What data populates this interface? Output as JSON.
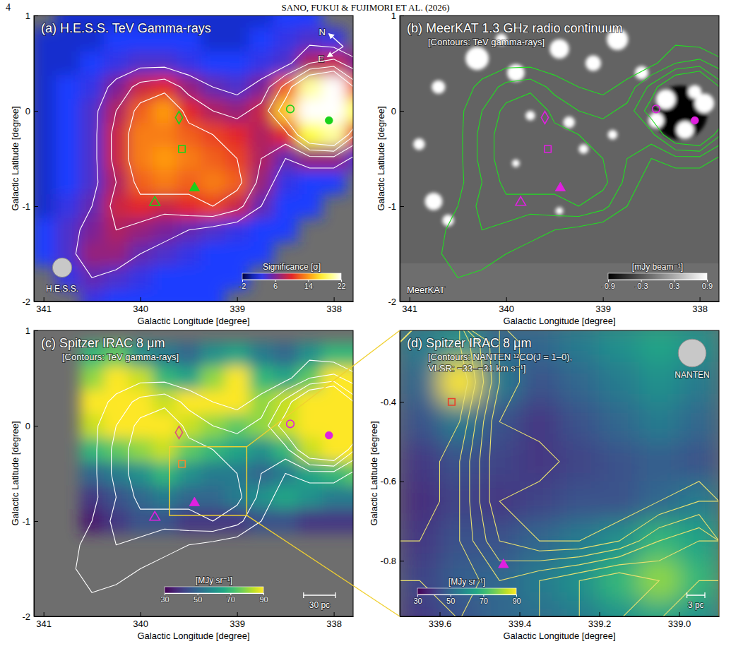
{
  "header": {
    "page": "4",
    "running_head": "SANO, FUKUI & FUJIMORI ET AL. (2026)"
  },
  "chart_data": [
    {
      "type": "heatmap",
      "title": "(a) H.E.S.S. TeV Gamma-rays",
      "xlabel": "Galactic Longitude [degree]",
      "ylabel": "Galactic Latitude [degree]",
      "xlim": [
        341.1,
        337.8
      ],
      "ylim": [
        -2,
        1
      ],
      "xticks": [
        341,
        340,
        339,
        338
      ],
      "yticks": [
        1,
        0,
        -1,
        -2
      ],
      "image": {
        "x": [
          341,
          340.75,
          340.5,
          340.25,
          340,
          339.75,
          339.5,
          339.25,
          339,
          338.75,
          338.5,
          338.25,
          338,
          337.75
        ],
        "y": [
          1,
          0.75,
          0.5,
          0.25,
          0,
          -0.25,
          -0.5,
          -0.75,
          -1,
          -1.25,
          -1.5,
          -1.75,
          -2
        ],
        "values": [
          [
            null,
            1,
            1,
            1,
            1,
            1,
            1,
            1,
            1,
            1,
            2,
            2,
            null,
            null
          ],
          [
            1,
            1,
            1,
            2,
            2,
            2,
            2,
            1,
            1,
            2,
            3,
            4,
            3,
            null
          ],
          [
            1,
            1,
            2,
            3,
            4,
            4,
            3,
            2,
            2,
            3,
            4,
            8,
            9,
            6
          ],
          [
            1,
            2,
            3,
            6,
            9,
            10,
            7,
            5,
            4,
            6,
            12,
            20,
            24,
            12
          ],
          [
            1,
            2,
            4,
            8,
            12,
            14,
            10,
            8,
            7,
            9,
            16,
            28,
            30,
            18
          ],
          [
            1,
            2,
            4,
            9,
            13,
            13,
            12,
            11,
            10,
            8,
            10,
            18,
            20,
            10
          ],
          [
            1,
            2,
            4,
            9,
            13,
            14,
            13,
            12,
            11,
            8,
            5,
            7,
            7,
            4
          ],
          [
            1,
            2,
            4,
            8,
            12,
            13,
            12,
            13,
            12,
            7,
            3,
            2,
            2,
            null
          ],
          [
            1,
            3,
            5,
            9,
            10,
            9,
            10,
            11,
            9,
            5,
            2,
            2,
            null,
            null
          ],
          [
            2,
            4,
            6,
            8,
            7,
            6,
            5,
            4,
            3,
            2,
            2,
            null,
            null,
            null
          ],
          [
            2,
            4,
            7,
            7,
            5,
            4,
            3,
            2,
            2,
            2,
            null,
            null,
            null,
            null
          ],
          [
            null,
            3,
            5,
            4,
            3,
            2,
            2,
            2,
            2,
            null,
            null,
            null,
            null,
            null
          ],
          [
            null,
            null,
            3,
            2,
            2,
            2,
            2,
            2,
            null,
            null,
            null,
            null,
            null,
            null
          ]
        ]
      },
      "contour_levels": [
        5,
        8,
        11,
        14
      ],
      "colorbar": {
        "label": "Significance [σ]",
        "range": [
          -2,
          22
        ],
        "ticks": [
          -2,
          6,
          14,
          22
        ]
      },
      "markers": [
        {
          "x": 338.45,
          "y": 0.02,
          "marker": "circle-open",
          "color": "#19d219"
        },
        {
          "x": 338.05,
          "y": -0.1,
          "marker": "circle",
          "color": "#19d219"
        },
        {
          "x": 339.6,
          "y": -0.07,
          "marker": "diamond-open",
          "color": "#19d219"
        },
        {
          "x": 339.57,
          "y": -0.4,
          "marker": "square-open",
          "color": "#19d219"
        },
        {
          "x": 339.44,
          "y": -0.81,
          "marker": "triangle",
          "color": "#19d219"
        },
        {
          "x": 339.85,
          "y": -0.96,
          "marker": "triangle-open",
          "color": "#19d219"
        }
      ],
      "beam": {
        "label": "H.E.S.S.",
        "radius_deg": 0.1
      },
      "compass": [
        "N",
        "E"
      ]
    },
    {
      "type": "heatmap",
      "title": "(b) MeerKAT 1.3 GHz radio continuum",
      "subtitle": "[Contours: TeV gamma-rays]",
      "xlabel": "Galactic Longitude [degree]",
      "ylabel": "Galactic Latitude [degree]",
      "xlim": [
        341.1,
        337.8
      ],
      "ylim": [
        -2,
        1
      ],
      "xticks": [
        341,
        340,
        339,
        338
      ],
      "yticks": [
        1,
        0,
        -1,
        -2
      ],
      "background": -0.2,
      "coverage_ylim": [
        -1.6,
        1
      ],
      "sources": [
        {
          "x": 338.2,
          "y": -0.02,
          "r": 0.28,
          "value": -0.9
        },
        {
          "x": 338.35,
          "y": 0.12,
          "r": 0.1,
          "value": 0.9
        },
        {
          "x": 338.45,
          "y": -0.1,
          "r": 0.08,
          "value": 0.9
        },
        {
          "x": 338.15,
          "y": -0.2,
          "r": 0.09,
          "value": 0.9
        },
        {
          "x": 337.95,
          "y": 0.08,
          "r": 0.1,
          "value": 0.9
        },
        {
          "x": 338.05,
          "y": 0.2,
          "r": 0.07,
          "value": 0.9
        },
        {
          "x": 340.3,
          "y": 0.55,
          "r": 0.12,
          "value": 0.9
        },
        {
          "x": 339.9,
          "y": 0.4,
          "r": 0.09,
          "value": 0.9
        },
        {
          "x": 339.45,
          "y": 0.65,
          "r": 0.1,
          "value": 0.9
        },
        {
          "x": 339.1,
          "y": 0.5,
          "r": 0.08,
          "value": 0.9
        },
        {
          "x": 338.85,
          "y": 0.75,
          "r": 0.11,
          "value": 0.9
        },
        {
          "x": 338.6,
          "y": 0.4,
          "r": 0.07,
          "value": 0.9
        },
        {
          "x": 340.7,
          "y": 0.25,
          "r": 0.07,
          "value": 0.9
        },
        {
          "x": 340.9,
          "y": -0.35,
          "r": 0.06,
          "value": 0.9
        },
        {
          "x": 340.75,
          "y": -0.95,
          "r": 0.09,
          "value": 0.9
        },
        {
          "x": 340.6,
          "y": -1.15,
          "r": 0.06,
          "value": 0.9
        },
        {
          "x": 339.75,
          "y": -0.05,
          "r": 0.05,
          "value": 0.9
        },
        {
          "x": 339.35,
          "y": -0.12,
          "r": 0.06,
          "value": 0.9
        },
        {
          "x": 339.2,
          "y": -0.4,
          "r": 0.05,
          "value": 0.9
        },
        {
          "x": 339.9,
          "y": -0.55,
          "r": 0.04,
          "value": 0.9
        },
        {
          "x": 338.9,
          "y": -0.25,
          "r": 0.05,
          "value": 0.9
        },
        {
          "x": 339.45,
          "y": -1.05,
          "r": 0.04,
          "value": 0.9
        },
        {
          "x": 340.05,
          "y": 0.75,
          "r": 0.06,
          "value": 0.9
        }
      ],
      "contour_levels": [
        5,
        8,
        11,
        14
      ],
      "colorbar": {
        "label": "[mJy beam⁻¹]",
        "range": [
          -0.9,
          0.9
        ],
        "ticks": [
          -0.9,
          -0.3,
          0.3,
          0.9
        ]
      },
      "markers": [
        {
          "x": 338.45,
          "y": 0.02,
          "marker": "circle-open",
          "color": "#e020e0"
        },
        {
          "x": 338.05,
          "y": -0.1,
          "marker": "circle",
          "color": "#e020e0"
        },
        {
          "x": 339.6,
          "y": -0.07,
          "marker": "diamond-open",
          "color": "#e020e0"
        },
        {
          "x": 339.57,
          "y": -0.4,
          "marker": "square-open",
          "color": "#e020e0"
        },
        {
          "x": 339.44,
          "y": -0.81,
          "marker": "triangle",
          "color": "#e020e0"
        },
        {
          "x": 339.85,
          "y": -0.96,
          "marker": "triangle-open",
          "color": "#e020e0"
        }
      ],
      "telescope": "MeerKAT"
    },
    {
      "type": "heatmap",
      "title": "(c) Spitzer IRAC 8 μm",
      "subtitle": "[Contours: TeV gamma-rays]",
      "xlabel": "Galactic Longitude [degree]",
      "ylabel": "Galactic Latitude [degree]",
      "xlim": [
        341.1,
        337.8
      ],
      "ylim": [
        -2,
        1
      ],
      "xticks": [
        341,
        340,
        339,
        338
      ],
      "yticks": [
        1,
        0,
        -1,
        -2
      ],
      "image": {
        "x": [
          340.5,
          340.25,
          340,
          339.75,
          339.5,
          339.25,
          339,
          338.75,
          338.5,
          338.25,
          338,
          337.75
        ],
        "y": [
          0.75,
          0.5,
          0.25,
          0,
          -0.25,
          -0.5,
          -0.75,
          -1
        ],
        "values": [
          [
            70,
            75,
            60,
            55,
            50,
            60,
            65,
            55,
            50,
            60,
            70,
            70
          ],
          [
            80,
            90,
            85,
            70,
            65,
            80,
            90,
            70,
            65,
            75,
            90,
            90
          ],
          [
            90,
            95,
            90,
            85,
            90,
            95,
            90,
            80,
            85,
            90,
            95,
            95
          ],
          [
            85,
            90,
            95,
            90,
            85,
            80,
            75,
            80,
            85,
            95,
            100,
            100
          ],
          [
            70,
            75,
            80,
            85,
            75,
            70,
            65,
            60,
            70,
            85,
            95,
            95
          ],
          [
            50,
            55,
            60,
            70,
            60,
            55,
            55,
            50,
            55,
            65,
            70,
            75
          ],
          [
            40,
            45,
            50,
            55,
            50,
            50,
            55,
            60,
            65,
            60,
            55,
            55
          ],
          [
            35,
            40,
            45,
            45,
            40,
            40,
            40,
            45,
            45,
            40,
            40,
            40
          ]
        ]
      },
      "contour_levels": [
        5,
        8,
        11,
        14
      ],
      "colorbar": {
        "label": "[MJy sr⁻¹]",
        "range": [
          30,
          90
        ],
        "ticks": [
          30,
          50,
          70,
          90
        ]
      },
      "markers": [
        {
          "x": 338.45,
          "y": 0.02,
          "marker": "circle-open",
          "color": "#e020e0"
        },
        {
          "x": 338.05,
          "y": -0.1,
          "marker": "circle",
          "color": "#e020e0"
        },
        {
          "x": 339.6,
          "y": -0.07,
          "marker": "diamond-open",
          "color": "#e0507a"
        },
        {
          "x": 339.57,
          "y": -0.4,
          "marker": "square-open",
          "color": "#f08a30"
        },
        {
          "x": 339.44,
          "y": -0.81,
          "marker": "triangle",
          "color": "#e020e0"
        },
        {
          "x": 339.85,
          "y": -0.96,
          "marker": "triangle-open",
          "color": "#e020e0"
        }
      ],
      "scale_bar": {
        "label": "30 pc",
        "length_deg": 0.33
      }
    },
    {
      "type": "heatmap",
      "title": "(d) Spitzer IRAC 8 μm",
      "subtitle": [
        "[Contours: NANTEN ¹²CO(J = 1–0),",
        "VLSR: −33–−31 km s⁻¹]"
      ],
      "xlabel": "Galactic Longitude [degree]",
      "ylabel": "Galactic Latitude [degree]",
      "xlim": [
        339.7,
        338.9
      ],
      "ylim": [
        -0.94,
        -0.22
      ],
      "xticks": [
        339.6,
        339.4,
        339.2,
        {
          "value": 339,
          "label": "339.0"
        }
      ],
      "yticks": [
        -0.4,
        -0.6,
        -0.8
      ],
      "image": {
        "x": [
          339.65,
          339.55,
          339.45,
          339.35,
          339.25,
          339.15,
          339.05,
          338.95
        ],
        "y": [
          -0.25,
          -0.35,
          -0.45,
          -0.55,
          -0.65,
          -0.75,
          -0.85,
          -0.95
        ],
        "values": [
          [
            55,
            60,
            50,
            50,
            55,
            60,
            65,
            60
          ],
          [
            50,
            95,
            55,
            45,
            50,
            55,
            60,
            55
          ],
          [
            45,
            55,
            45,
            40,
            45,
            50,
            55,
            50
          ],
          [
            40,
            45,
            42,
            40,
            42,
            45,
            48,
            45
          ],
          [
            38,
            42,
            40,
            42,
            45,
            45,
            50,
            55
          ],
          [
            40,
            45,
            45,
            50,
            55,
            60,
            70,
            65
          ],
          [
            42,
            48,
            50,
            55,
            60,
            70,
            80,
            70
          ],
          [
            40,
            45,
            50,
            52,
            55,
            60,
            65,
            60
          ]
        ]
      },
      "contour_image": {
        "x": [
          339.65,
          339.55,
          339.45,
          339.35,
          339.25,
          339.15,
          339.05,
          338.95
        ],
        "y": [
          -0.25,
          -0.35,
          -0.45,
          -0.55,
          -0.65,
          -0.75,
          -0.85,
          -0.95
        ],
        "values": [
          [
            8,
            7,
            3,
            1,
            1,
            1,
            1,
            1
          ],
          [
            9,
            8,
            3,
            1,
            1,
            1,
            1,
            1
          ],
          [
            9,
            7,
            2,
            1,
            2,
            1,
            1,
            1
          ],
          [
            8,
            6,
            2,
            3,
            1,
            1,
            1,
            1
          ],
          [
            8,
            6,
            2,
            1,
            1,
            1,
            2,
            3
          ],
          [
            7,
            6,
            3,
            2,
            2,
            3,
            5,
            6
          ],
          [
            6,
            7,
            5,
            6,
            7,
            8,
            7,
            6
          ],
          [
            5,
            6,
            5,
            6,
            7,
            7,
            6,
            5
          ]
        ]
      },
      "contour_levels": [
        2,
        3,
        4,
        5,
        6,
        7
      ],
      "colorbar": {
        "label": "[MJy sr⁻¹]",
        "range": [
          30,
          90
        ],
        "ticks": [
          30,
          50,
          70,
          90
        ]
      },
      "markers": [
        {
          "x": 339.57,
          "y": -0.4,
          "marker": "square-open",
          "color": "#e8402a"
        },
        {
          "x": 339.44,
          "y": -0.81,
          "marker": "triangle",
          "color": "#e020e0"
        }
      ],
      "beam": {
        "label": "NANTEN",
        "radius_deg": 0.035
      },
      "scale_bar": {
        "label": "3 pc",
        "length_deg": 0.045
      }
    }
  ]
}
